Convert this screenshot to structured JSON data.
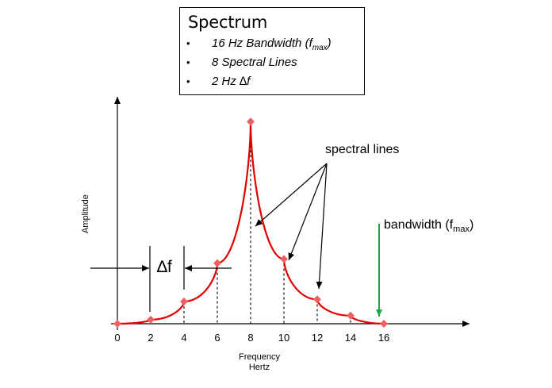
{
  "info_box": {
    "title": "Spectrum",
    "items": [
      {
        "bullet": "•",
        "text": "16 Hz Bandwidth (f",
        "sub": "max",
        "tail": ")"
      },
      {
        "bullet": "•",
        "text": "8 Spectral Lines",
        "sub": "",
        "tail": ""
      },
      {
        "bullet": "•",
        "text": "2 Hz ∆f",
        "sub": "",
        "tail": ""
      }
    ]
  },
  "labels": {
    "spectral_lines": "spectral lines",
    "bandwidth": "bandwidth (f",
    "bandwidth_sub": "max",
    "bandwidth_tail": ")",
    "delta_f": "∆f",
    "y_axis": "Amplitude",
    "x_axis_line1": "Frequency",
    "x_axis_line2": "Hertz"
  },
  "colors": {
    "curve": "#e00000",
    "marker": "#f06060",
    "bandwidth_arrow": "#1aa84c",
    "axis": "#000000"
  },
  "chart_data": {
    "type": "line",
    "x_ticks": [
      0,
      2,
      4,
      6,
      8,
      10,
      12,
      14,
      16
    ],
    "xlim": [
      0,
      21
    ],
    "points": [
      {
        "x": 0,
        "y": 0
      },
      {
        "x": 2,
        "y": 0.02
      },
      {
        "x": 4,
        "y": 0.11
      },
      {
        "x": 6,
        "y": 0.3
      },
      {
        "x": 8,
        "y": 1.0
      },
      {
        "x": 10,
        "y": 0.32
      },
      {
        "x": 12,
        "y": 0.12
      },
      {
        "x": 14,
        "y": 0.04
      },
      {
        "x": 16,
        "y": 0
      }
    ],
    "ylim": [
      0,
      1.17
    ]
  }
}
